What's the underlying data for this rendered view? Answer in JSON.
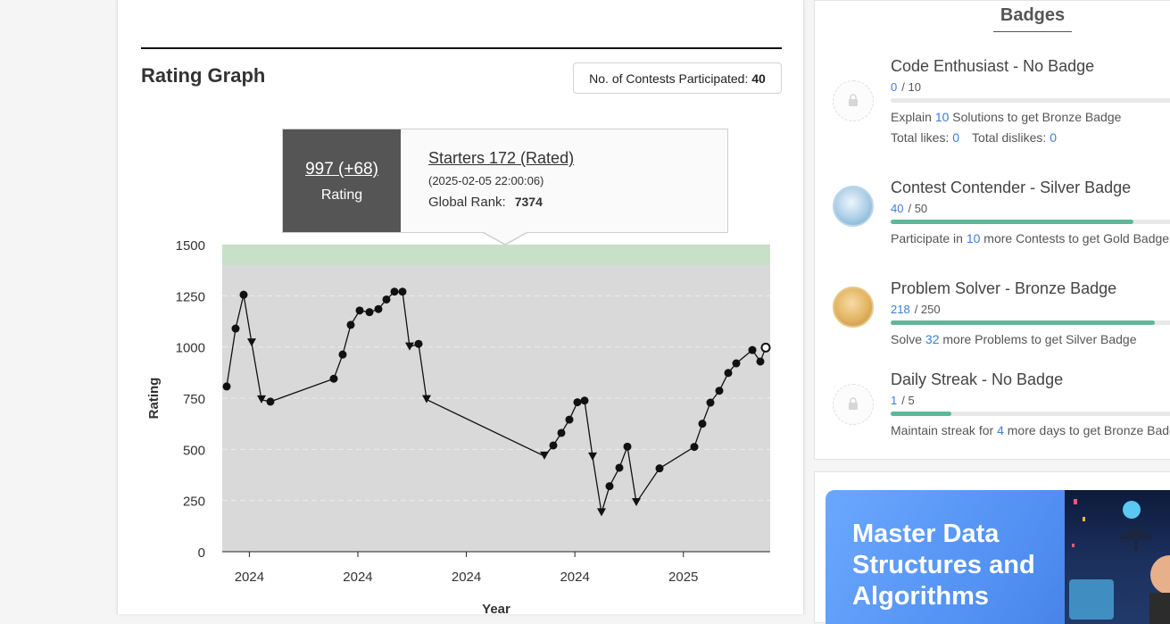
{
  "rating_graph": {
    "title": "Rating Graph",
    "contests_label": "No. of Contests Participated:",
    "contests_count": "40"
  },
  "tooltip": {
    "rating": "997 (+68)",
    "rating_label": "Rating",
    "contest": "Starters 172 (Rated)",
    "datetime": "(2025-02-05 22:00:06)",
    "rank_label": "Global Rank:",
    "rank_value": "7374"
  },
  "chart_data": {
    "type": "line",
    "xlabel": "Year",
    "ylabel": "Rating",
    "ylim": [
      0,
      1500
    ],
    "yticks": [
      "1500",
      "1250",
      "1000",
      "750",
      "500",
      "250",
      "0"
    ],
    "xticks": [
      "2024",
      "2024",
      "2024",
      "2024",
      "2025"
    ],
    "band": {
      "from": 1400,
      "to": 1500,
      "color": "#c8e0c8"
    },
    "colors": {
      "plot_bg": "#d9d9d9",
      "line": "#111111"
    },
    "series": [
      {
        "values": [
          807,
          1090,
          1255,
          1020,
          742,
          733,
          845,
          963,
          1108,
          1178,
          1170,
          1185,
          1232,
          1270,
          1270,
          1000,
          1015,
          743,
          467,
          519,
          580,
          645,
          730,
          738,
          463,
          190,
          320,
          410,
          513,
          240,
          407,
          512,
          625,
          728,
          786,
          873,
          920,
          985,
          929,
          997
        ],
        "markers": [
          "dot",
          "dot",
          "dot",
          "down",
          "down",
          "dot",
          "dot",
          "dot",
          "dot",
          "dot",
          "dot",
          "dot",
          "dot",
          "dot",
          "dot",
          "down",
          "dot",
          "down",
          "down",
          "dot",
          "dot",
          "dot",
          "dot",
          "dot",
          "down",
          "down",
          "dot",
          "dot",
          "dot",
          "down",
          "dot",
          "dot",
          "dot",
          "dot",
          "dot",
          "dot",
          "dot",
          "dot",
          "dot",
          "ring"
        ]
      }
    ]
  },
  "badges": {
    "title": "Badges",
    "items": [
      {
        "name": "Code Enthusiast - No Badge",
        "current": "0",
        "total": "/ 10",
        "progress": 0.0,
        "desc_pre": "Explain ",
        "desc_num": "10",
        "desc_post": " Solutions to get Bronze Badge",
        "likes_label": "Total likes:",
        "likes": "0",
        "dislikes_label": "Total dislikes:",
        "dislikes": "0"
      },
      {
        "name": "Contest Contender - Silver Badge",
        "current": "40",
        "total": "/ 50",
        "progress": 0.8,
        "desc_pre": "Participate in ",
        "desc_num": "10",
        "desc_post": " more Contests to get Gold Badge"
      },
      {
        "name": "Problem Solver - Bronze Badge",
        "current": "218",
        "total": "/ 250",
        "progress": 0.872,
        "desc_pre": "Solve ",
        "desc_num": "32",
        "desc_post": " more Problems to get Silver Badge"
      },
      {
        "name": "Daily Streak - No Badge",
        "current": "1",
        "total": "/ 5",
        "progress": 0.2,
        "desc_pre": "Maintain streak for ",
        "desc_num": "4",
        "desc_post": " more days to get Bronze Badge"
      }
    ]
  },
  "ad": {
    "title": "Master Data Structures and Algorithms"
  }
}
